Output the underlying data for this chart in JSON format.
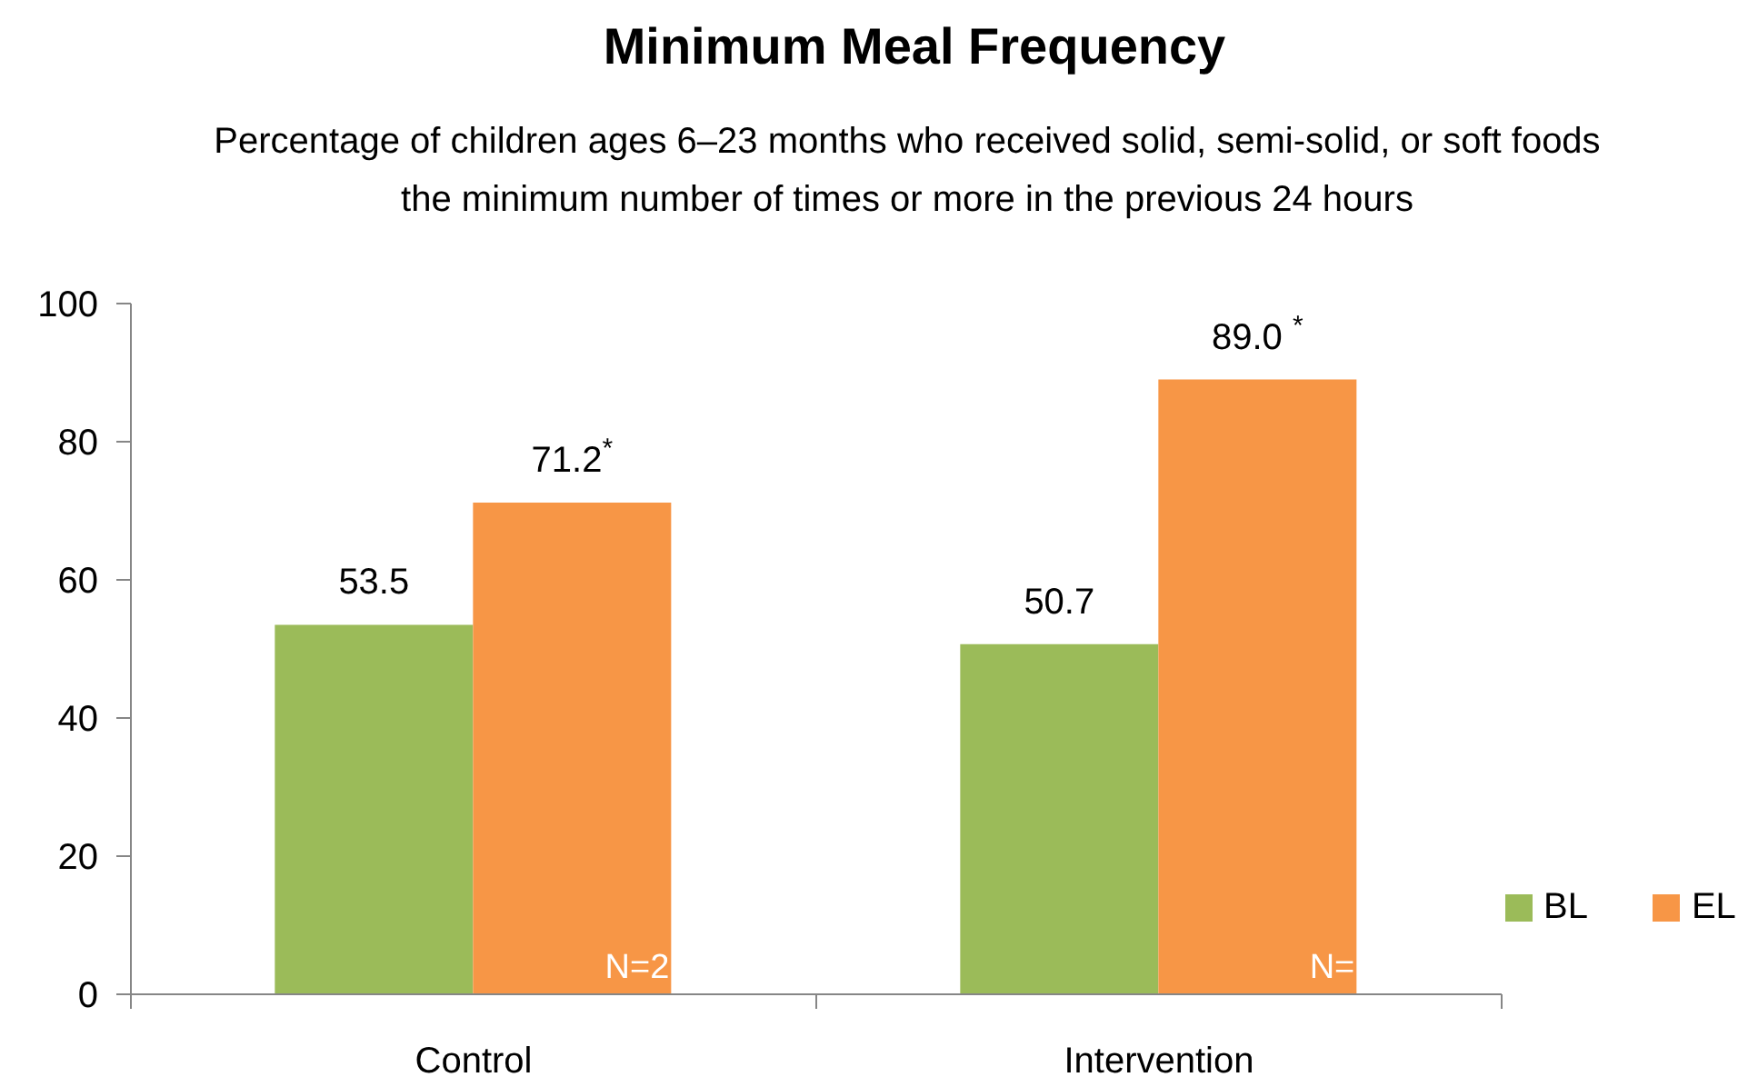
{
  "chart_data": {
    "type": "bar",
    "title": "Minimum Meal Frequency",
    "subtitle": "Percentage of children ages 6–23 months who received solid, semi-solid, or soft foods\nthe minimum number of times or more in the previous 24 hours",
    "categories": [
      "Control",
      "Intervention"
    ],
    "series": [
      {
        "name": "BL",
        "color": "#9bbb59",
        "values": [
          53.5,
          50.7
        ],
        "value_labels": [
          "53.5",
          "50.7"
        ]
      },
      {
        "name": "EL",
        "color": "#f79646",
        "values": [
          71.2,
          89.0
        ],
        "value_labels": [
          "71.2$^{*}$",
          "89.0 $^{*}$"
        ]
      }
    ],
    "ylim": [
      0,
      100
    ],
    "yticks": [
      0,
      20,
      40,
      60,
      80,
      100
    ],
    "legend": "bottom right",
    "annotations": [
      "N=2",
      "N="
    ]
  }
}
